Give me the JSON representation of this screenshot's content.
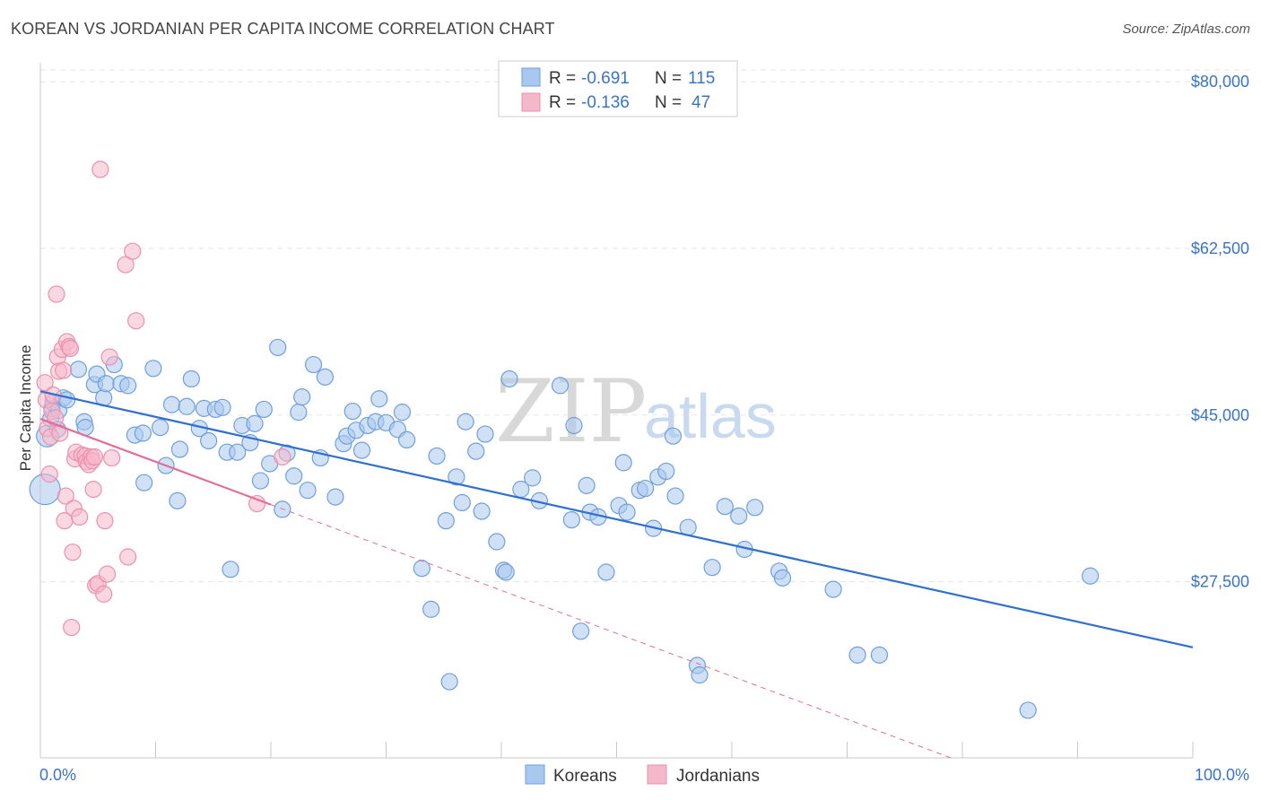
{
  "header": {
    "title": "KOREAN VS JORDANIAN PER CAPITA INCOME CORRELATION CHART",
    "source": "Source: ZipAtlas.com"
  },
  "watermark": {
    "zip": "ZIP",
    "atlas": "atlas"
  },
  "legend": {
    "rows": [
      {
        "r_label": "R =",
        "r_value": "-0.691",
        "n_label": "N =",
        "n_value": "115",
        "color": "#a9c8ef"
      },
      {
        "r_label": "R =",
        "r_value": "-0.136",
        "n_label": "N =",
        "n_value": "47",
        "color": "#f5b8cb"
      }
    ]
  },
  "chart_data": {
    "type": "scatter",
    "title": "KOREAN VS JORDANIAN PER CAPITA INCOME CORRELATION CHART",
    "xlabel": "",
    "ylabel": "Per Capita Income",
    "xlim": [
      0,
      100
    ],
    "ylim": [
      9000,
      82000
    ],
    "x_tick_labels": [
      "0.0%",
      "100.0%"
    ],
    "y_ticks": [
      27500,
      45000,
      62500,
      80000
    ],
    "y_tick_labels": [
      "$27,500",
      "$45,000",
      "$62,500",
      "$80,000"
    ],
    "grid": true,
    "legend_position": "top-center",
    "series": [
      {
        "name": "Koreans",
        "color": "#6f9fdc",
        "fill": "#a9c8ef",
        "trend": {
          "x": [
            0,
            100
          ],
          "y": [
            47500,
            20600
          ],
          "style": "solid",
          "color": "#2f6fcf"
        },
        "points": [
          [
            0.4,
            37200
          ],
          [
            0.6,
            42800
          ],
          [
            0.9,
            44600
          ],
          [
            1.0,
            45700
          ],
          [
            1.1,
            46300
          ],
          [
            1.5,
            43500
          ],
          [
            1.6,
            45500
          ],
          [
            2.0,
            46800
          ],
          [
            2.3,
            46600
          ],
          [
            3.3,
            49800
          ],
          [
            3.8,
            44300
          ],
          [
            3.9,
            43700
          ],
          [
            4.7,
            48200
          ],
          [
            4.9,
            49300
          ],
          [
            5.5,
            46800
          ],
          [
            5.7,
            48300
          ],
          [
            6.4,
            50300
          ],
          [
            7.0,
            48300
          ],
          [
            7.6,
            48100
          ],
          [
            8.2,
            42900
          ],
          [
            8.9,
            43100
          ],
          [
            9.0,
            37900
          ],
          [
            9.8,
            49900
          ],
          [
            10.4,
            43700
          ],
          [
            10.9,
            39700
          ],
          [
            11.4,
            46100
          ],
          [
            11.9,
            36000
          ],
          [
            12.1,
            41400
          ],
          [
            12.7,
            45900
          ],
          [
            13.1,
            48800
          ],
          [
            13.8,
            43600
          ],
          [
            14.2,
            45700
          ],
          [
            14.6,
            42300
          ],
          [
            15.2,
            45600
          ],
          [
            15.8,
            45800
          ],
          [
            16.2,
            41100
          ],
          [
            16.5,
            28800
          ],
          [
            17.1,
            41100
          ],
          [
            17.5,
            43900
          ],
          [
            18.2,
            42100
          ],
          [
            18.6,
            44100
          ],
          [
            19.1,
            38100
          ],
          [
            19.4,
            45600
          ],
          [
            19.9,
            39900
          ],
          [
            20.6,
            52100
          ],
          [
            21.0,
            35100
          ],
          [
            21.4,
            41000
          ],
          [
            22.0,
            38600
          ],
          [
            22.4,
            45300
          ],
          [
            22.7,
            46900
          ],
          [
            23.2,
            37100
          ],
          [
            23.7,
            50300
          ],
          [
            24.3,
            40500
          ],
          [
            24.7,
            49000
          ],
          [
            25.6,
            36400
          ],
          [
            26.3,
            42000
          ],
          [
            26.6,
            42800
          ],
          [
            27.1,
            45400
          ],
          [
            27.4,
            43400
          ],
          [
            27.9,
            41300
          ],
          [
            28.4,
            43900
          ],
          [
            29.1,
            44300
          ],
          [
            29.4,
            46700
          ],
          [
            30.0,
            44200
          ],
          [
            31.0,
            43500
          ],
          [
            31.4,
            45300
          ],
          [
            31.8,
            42400
          ],
          [
            33.1,
            28900
          ],
          [
            33.9,
            24600
          ],
          [
            34.4,
            40700
          ],
          [
            35.2,
            33900
          ],
          [
            35.5,
            17000
          ],
          [
            36.1,
            38500
          ],
          [
            36.6,
            35800
          ],
          [
            36.9,
            44300
          ],
          [
            37.8,
            41200
          ],
          [
            38.3,
            34900
          ],
          [
            38.6,
            43000
          ],
          [
            39.6,
            31700
          ],
          [
            40.2,
            28700
          ],
          [
            40.4,
            28500
          ],
          [
            40.7,
            48800
          ],
          [
            41.7,
            37200
          ],
          [
            42.7,
            38400
          ],
          [
            43.3,
            36000
          ],
          [
            45.1,
            48100
          ],
          [
            46.1,
            34000
          ],
          [
            46.3,
            43900
          ],
          [
            46.9,
            22300
          ],
          [
            47.4,
            37600
          ],
          [
            47.7,
            34800
          ],
          [
            48.4,
            34300
          ],
          [
            49.1,
            28500
          ],
          [
            50.2,
            35500
          ],
          [
            50.6,
            40000
          ],
          [
            50.9,
            34800
          ],
          [
            52.0,
            37100
          ],
          [
            52.5,
            37300
          ],
          [
            53.2,
            33100
          ],
          [
            53.6,
            38500
          ],
          [
            54.3,
            39100
          ],
          [
            54.9,
            42800
          ],
          [
            55.1,
            36500
          ],
          [
            56.2,
            33200
          ],
          [
            57.0,
            18700
          ],
          [
            57.2,
            17700
          ],
          [
            58.3,
            29000
          ],
          [
            59.4,
            35400
          ],
          [
            60.6,
            34400
          ],
          [
            61.1,
            30900
          ],
          [
            62.0,
            35300
          ],
          [
            64.1,
            28600
          ],
          [
            64.4,
            27900
          ],
          [
            68.8,
            26700
          ],
          [
            70.9,
            19800
          ],
          [
            72.8,
            19800
          ],
          [
            85.7,
            14000
          ],
          [
            91.1,
            28100
          ]
        ]
      },
      {
        "name": "Jordanians",
        "color": "#ec8fae",
        "fill": "#f5b8cb",
        "trend": {
          "x": [
            0,
            20
          ],
          "y": [
            44600,
            35600
          ],
          "style": "solid",
          "dash_x": [
            20,
            79
          ],
          "dash_y": [
            35600,
            9000
          ],
          "color": "#e36d96"
        },
        "points": [
          [
            0.4,
            48400
          ],
          [
            0.5,
            46600
          ],
          [
            0.6,
            43600
          ],
          [
            0.8,
            38800
          ],
          [
            0.9,
            42700
          ],
          [
            1.0,
            45400
          ],
          [
            1.1,
            47100
          ],
          [
            1.3,
            44700
          ],
          [
            1.4,
            57700
          ],
          [
            1.5,
            51100
          ],
          [
            1.6,
            49600
          ],
          [
            1.7,
            43100
          ],
          [
            1.9,
            51900
          ],
          [
            2.0,
            49700
          ],
          [
            2.1,
            33900
          ],
          [
            2.2,
            36500
          ],
          [
            2.3,
            52700
          ],
          [
            2.5,
            52200
          ],
          [
            2.6,
            52000
          ],
          [
            2.7,
            22700
          ],
          [
            2.8,
            30600
          ],
          [
            2.9,
            35200
          ],
          [
            3.0,
            40400
          ],
          [
            3.1,
            41100
          ],
          [
            3.4,
            34300
          ],
          [
            3.6,
            40800
          ],
          [
            3.9,
            40700
          ],
          [
            4.0,
            40100
          ],
          [
            4.2,
            39800
          ],
          [
            4.4,
            40600
          ],
          [
            4.5,
            40200
          ],
          [
            4.6,
            37200
          ],
          [
            4.7,
            40600
          ],
          [
            4.8,
            27100
          ],
          [
            5.0,
            27300
          ],
          [
            5.2,
            70800
          ],
          [
            5.5,
            26200
          ],
          [
            5.6,
            33900
          ],
          [
            5.8,
            28300
          ],
          [
            6.0,
            51100
          ],
          [
            6.2,
            40500
          ],
          [
            7.6,
            30100
          ],
          [
            7.4,
            60800
          ],
          [
            8.0,
            62200
          ],
          [
            8.3,
            54900
          ],
          [
            18.8,
            35700
          ],
          [
            21.0,
            40600
          ]
        ]
      }
    ]
  }
}
